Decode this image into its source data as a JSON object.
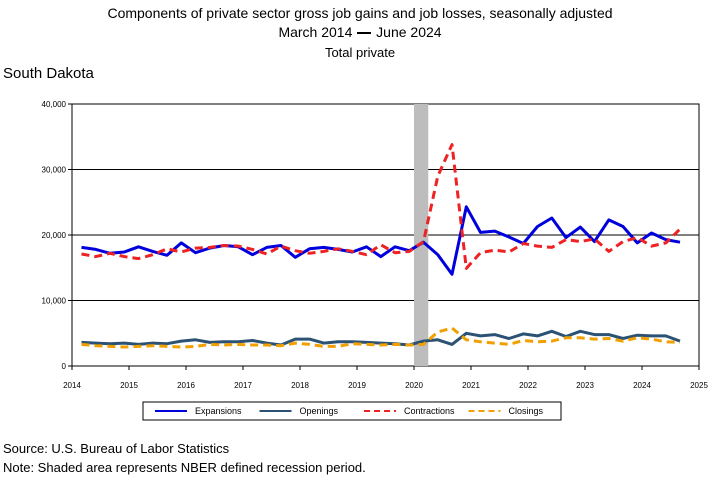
{
  "header": {
    "line1": "Components of private sector gross job gains and job losses, seasonally adjusted",
    "line2_start": "March 2014",
    "line2_end": "June 2024",
    "line3": "Total private",
    "state": "South Dakota"
  },
  "footer": {
    "source": "Source: U.S. Bureau of Labor Statistics",
    "note": "Note: Shaded area represents NBER defined recession period."
  },
  "chart_data": {
    "type": "line",
    "x_start": "2014-03",
    "x_step": "quarter",
    "xlim": [
      2014,
      2025
    ],
    "ylim": [
      0,
      40000
    ],
    "x_ticks": [
      "2014",
      "2015",
      "2016",
      "2017",
      "2018",
      "2019",
      "2020",
      "2021",
      "2022",
      "2023",
      "2024",
      "2025"
    ],
    "y_ticks": [
      "0",
      "10,000",
      "20,000",
      "30,000",
      "40,000"
    ],
    "grid": "horizontal",
    "recession": {
      "start": 2020.0,
      "end": 2020.25
    },
    "legend_position": "bottom",
    "series": [
      {
        "name": "Expansions",
        "color": "#0000dd",
        "dash": "solid",
        "values": [
          18100,
          17800,
          17200,
          17400,
          18200,
          17500,
          16900,
          18800,
          17300,
          18000,
          18400,
          18200,
          17000,
          18100,
          18400,
          16600,
          17900,
          18100,
          17800,
          17400,
          18200,
          16700,
          18200,
          17600,
          18900,
          17000,
          14000,
          24300,
          20400,
          20600,
          19700,
          18700,
          21300,
          22600,
          19600,
          21200,
          19000,
          22300,
          21300,
          18800,
          20300,
          19300,
          18900
        ]
      },
      {
        "name": "Openings",
        "color": "#2b5274",
        "dash": "solid",
        "values": [
          3600,
          3500,
          3400,
          3500,
          3300,
          3500,
          3400,
          3800,
          4000,
          3600,
          3700,
          3700,
          3900,
          3500,
          3200,
          4100,
          4100,
          3500,
          3700,
          3700,
          3600,
          3500,
          3400,
          3200,
          3800,
          4000,
          3300,
          5000,
          4600,
          4800,
          4200,
          4900,
          4600,
          5300,
          4500,
          5300,
          4800,
          4800,
          4200,
          4700,
          4600,
          4600,
          3800
        ]
      },
      {
        "name": "Contractions",
        "color": "#ee2222",
        "dash": "dashed",
        "values": [
          17100,
          16700,
          17200,
          16700,
          16400,
          17000,
          17900,
          17400,
          18000,
          18100,
          18400,
          18300,
          17800,
          17100,
          18300,
          17600,
          17200,
          17500,
          17900,
          17500,
          17000,
          18500,
          17300,
          17500,
          19000,
          29000,
          33800,
          14900,
          17300,
          17700,
          17400,
          18700,
          18300,
          18100,
          19300,
          19000,
          19400,
          17500,
          19000,
          19600,
          18300,
          18800,
          20900
        ]
      },
      {
        "name": "Closings",
        "color": "#f0a000",
        "dash": "dashed",
        "values": [
          3300,
          3100,
          3000,
          2900,
          3000,
          3100,
          3000,
          2900,
          3000,
          3300,
          3200,
          3300,
          3200,
          3200,
          3100,
          3500,
          3300,
          3000,
          3000,
          3400,
          3300,
          3200,
          3300,
          3200,
          3300,
          5200,
          5800,
          4000,
          3700,
          3500,
          3300,
          3900,
          3700,
          3800,
          4300,
          4300,
          4100,
          4200,
          3800,
          4300,
          4100,
          3700,
          3600
        ]
      }
    ]
  }
}
